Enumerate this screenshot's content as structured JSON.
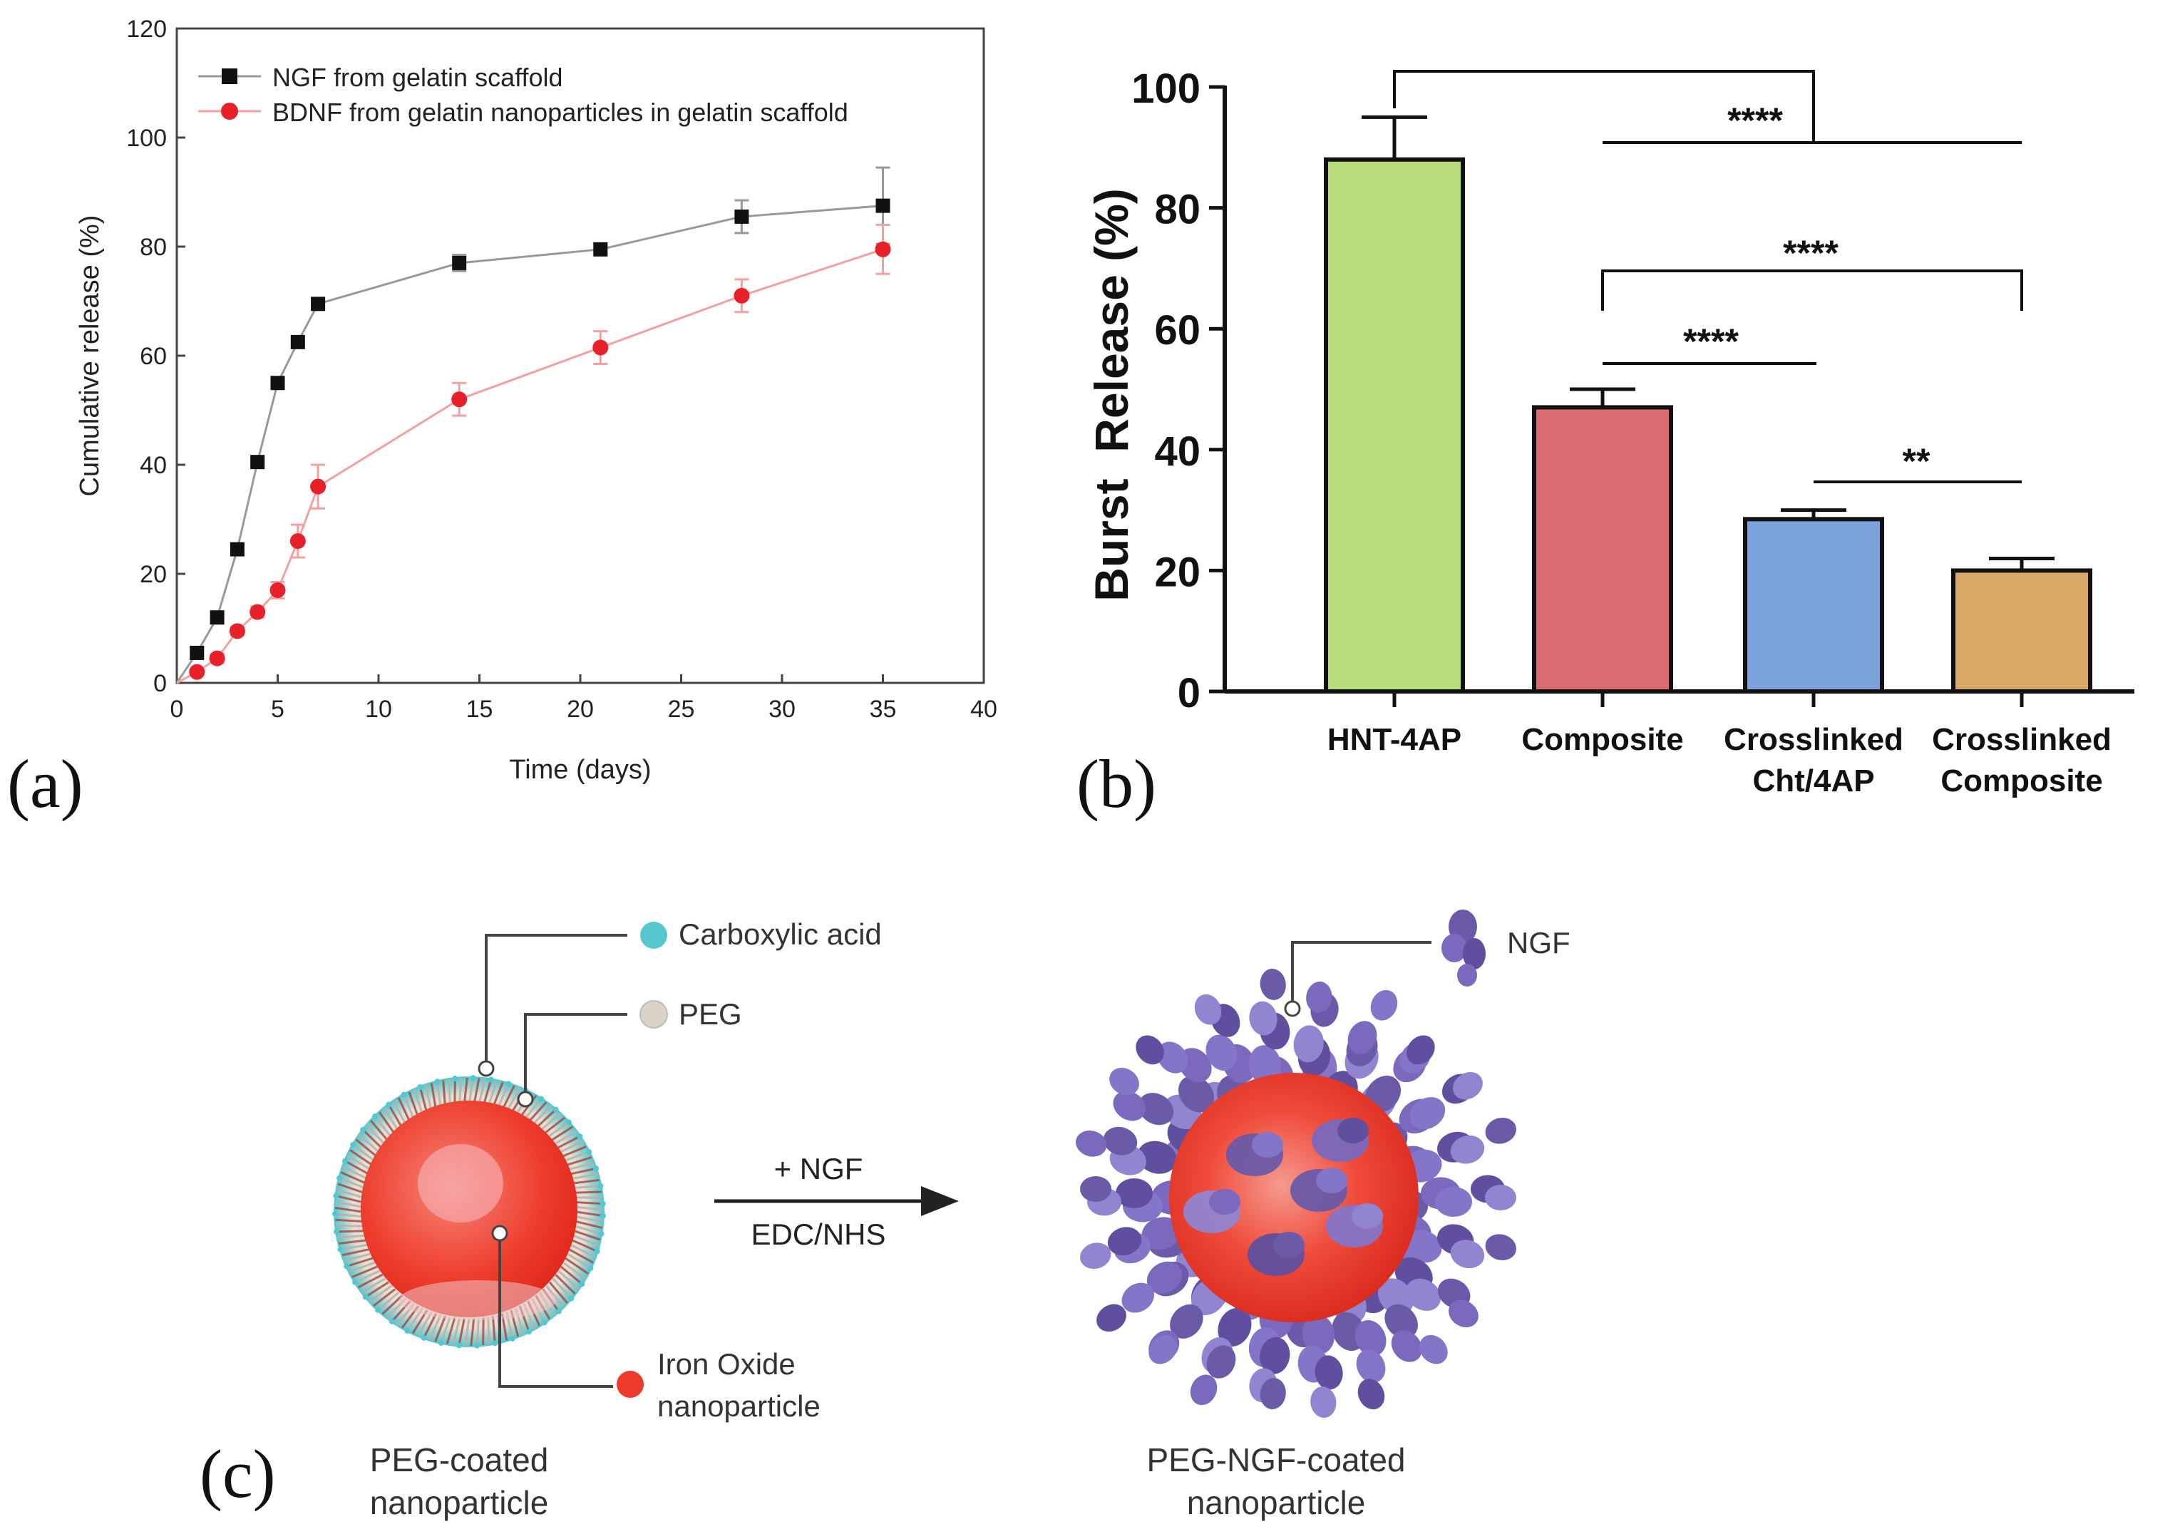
{
  "panel_labels": {
    "a": "(a)",
    "b": "(b)",
    "c": "(c)"
  },
  "colors": {
    "ngf_series": "#111111",
    "bdnf_series": "#e8202a",
    "bar_hnt": "#b8dc7a",
    "bar_composite": "#dc6b72",
    "bar_cross_cht": "#7ba2da",
    "bar_cross_comp": "#d8a865",
    "carboxylic": "#56c7cf",
    "peg": "#d9d3c8",
    "iron": "#ee3b2b",
    "ngf_protein": "#7a69bd"
  },
  "chart_data": [
    {
      "id": "a",
      "type": "line",
      "title": "",
      "xlabel": "Time (days)",
      "ylabel": "Cumulative release (%)",
      "xlim": [
        0,
        40
      ],
      "ylim": [
        0,
        120
      ],
      "xticks": [
        0,
        5,
        10,
        15,
        20,
        25,
        30,
        35,
        40
      ],
      "yticks": [
        0,
        20,
        40,
        60,
        80,
        100,
        120
      ],
      "legend_position": "top-left",
      "series": [
        {
          "name": "NGF from gelatin scaffold",
          "marker": "square",
          "x": [
            0,
            1,
            2,
            3,
            4,
            5,
            6,
            7,
            14,
            21,
            28,
            35
          ],
          "y": [
            0,
            5.5,
            12,
            24.5,
            40.5,
            55,
            62.5,
            69.5,
            77,
            79.5,
            85.5,
            87.5
          ],
          "err": [
            0,
            0.5,
            0.8,
            0.8,
            0.8,
            1,
            1,
            1,
            1.5,
            1,
            3,
            7
          ]
        },
        {
          "name": "BDNF from gelatin nanoparticles in gelatin scaffold",
          "marker": "circle",
          "x": [
            0,
            1,
            2,
            3,
            4,
            5,
            6,
            7,
            14,
            21,
            28,
            35
          ],
          "y": [
            0,
            2,
            4.5,
            9.5,
            13,
            17,
            26,
            36,
            52,
            61.5,
            71,
            79.5
          ],
          "err": [
            0,
            0.5,
            0.8,
            0.8,
            1,
            1.5,
            3,
            4,
            3,
            3,
            3,
            4.5
          ]
        }
      ]
    },
    {
      "id": "b",
      "type": "bar",
      "title": "",
      "xlabel": "",
      "ylabel": "Burst  Release (%)",
      "ylim": [
        0,
        100
      ],
      "yticks": [
        0,
        20,
        40,
        60,
        80,
        100
      ],
      "categories": [
        [
          "HNT-4AP"
        ],
        [
          "Composite"
        ],
        [
          "Crosslinked",
          "Cht/4AP"
        ],
        [
          "Crosslinked",
          "Composite"
        ]
      ],
      "values": [
        88,
        47,
        28.5,
        20
      ],
      "errors": [
        7,
        3,
        1.5,
        2
      ],
      "significance": [
        {
          "from": 0,
          "to": [
            1,
            2,
            3
          ],
          "label": "****"
        },
        {
          "from": 1,
          "to": 3,
          "label": "****"
        },
        {
          "from": 1,
          "to": 2,
          "label": "****"
        },
        {
          "from": 2,
          "to": 3,
          "label": "**"
        }
      ]
    }
  ],
  "panel_c": {
    "legend": {
      "carboxylic": "Carboxylic acid",
      "peg": "PEG",
      "iron": [
        "Iron Oxide",
        "nanoparticle"
      ],
      "ngf": "NGF"
    },
    "reaction": {
      "top": "+ NGF",
      "bottom": "EDC/NHS"
    },
    "left_caption": [
      "PEG-coated",
      "nanoparticle"
    ],
    "right_caption": [
      "PEG-NGF-coated",
      "nanoparticle"
    ]
  }
}
